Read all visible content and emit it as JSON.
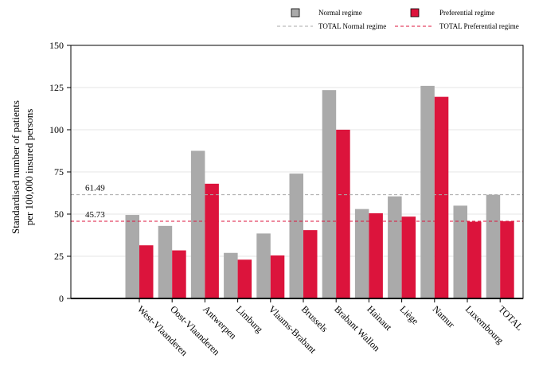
{
  "chart_data": {
    "type": "bar",
    "title": "",
    "xlabel": "",
    "ylabel_lines": [
      "Standardised number of patients",
      "per 100,000 insured persons"
    ],
    "ylim": [
      0,
      150
    ],
    "yticks": [
      0,
      25,
      50,
      75,
      100,
      125,
      150
    ],
    "grid": true,
    "legend_position": "top",
    "categories": [
      "West-Vlaanderen",
      "Oost-Vlaanderen",
      "Antwerpen",
      "Limburg",
      "Vlaams-Brabant",
      "Brussels",
      "Brabant Wallon",
      "Hainaut",
      "Liège",
      "Namur",
      "Luxembourg",
      "TOTAL"
    ],
    "series": [
      {
        "name": "Normal regime",
        "color": "#aaaaaa",
        "values": [
          49.5,
          43,
          87.5,
          27,
          38.5,
          74,
          123.5,
          53,
          60.5,
          126,
          55,
          61.49
        ]
      },
      {
        "name": "Preferential regime",
        "color": "#dc143c",
        "values": [
          31.5,
          28.5,
          68,
          23,
          25.5,
          40.5,
          100,
          50.5,
          48.5,
          119.5,
          45.5,
          45.73
        ]
      }
    ],
    "reference_lines": [
      {
        "name": "TOTAL Normal regime",
        "value": 61.49,
        "label": "61.49",
        "color": "#aaaaaa",
        "dashed": true
      },
      {
        "name": "TOTAL Preferential regime",
        "value": 45.73,
        "label": "45.73",
        "color": "#dc143c",
        "dashed": true
      }
    ]
  }
}
